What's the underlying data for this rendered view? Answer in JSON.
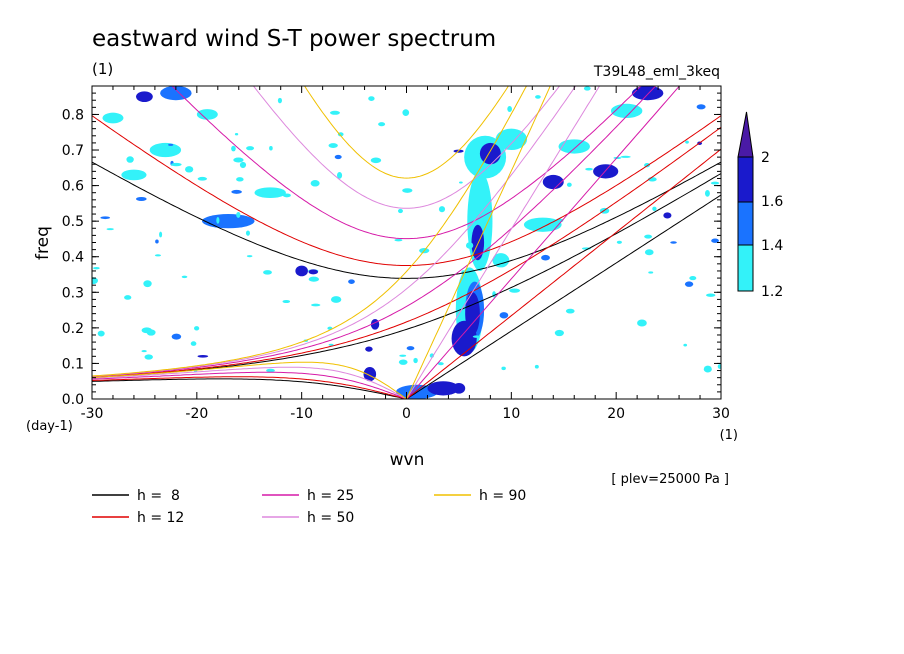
{
  "chart_data": {
    "type": "contour",
    "title": "eastward wind S-T power spectrum",
    "subtitle": "(1)",
    "run_label": "T39L48_eml_3keq",
    "xlabel": "wvn",
    "ylabel": "freq",
    "x_unit": "(1)",
    "y_unit": "(day-1)",
    "level_note": "[ plev=25000 Pa ]",
    "xlim": [
      -30,
      30
    ],
    "ylim": [
      0,
      0.88
    ],
    "x_ticks": [
      {
        "value": -30,
        "label": "-30"
      },
      {
        "value": -20,
        "label": "-20"
      },
      {
        "value": -10,
        "label": "-10"
      },
      {
        "value": 0,
        "label": "0"
      },
      {
        "value": 10,
        "label": "10"
      },
      {
        "value": 20,
        "label": "20"
      },
      {
        "value": 30,
        "label": "30"
      }
    ],
    "y_ticks": [
      {
        "value": 0.0,
        "label": "0.0"
      },
      {
        "value": 0.1,
        "label": "0.1"
      },
      {
        "value": 0.2,
        "label": "0.2"
      },
      {
        "value": 0.3,
        "label": "0.3"
      },
      {
        "value": 0.4,
        "label": "0.4"
      },
      {
        "value": 0.5,
        "label": "0.5"
      },
      {
        "value": 0.6,
        "label": "0.6"
      },
      {
        "value": 0.7,
        "label": "0.7"
      },
      {
        "value": 0.8,
        "label": "0.8"
      }
    ],
    "colorbar": {
      "levels": [
        {
          "value": 1.2,
          "label": "1.2",
          "color": "#33f2f9"
        },
        {
          "value": 1.4,
          "label": "1.4",
          "color": "#1a73ff"
        },
        {
          "value": 1.6,
          "label": "1.6",
          "color": "#1a1acc"
        },
        {
          "value": 2.0,
          "label": "2",
          "color": "#4a1aa6"
        }
      ],
      "extend": "max"
    },
    "dispersion_curves": [
      {
        "label": "h =  8",
        "h": 8,
        "color": "#000000"
      },
      {
        "label": "h = 12",
        "h": 12,
        "color": "#e00000"
      },
      {
        "label": "h = 25",
        "h": 25,
        "color": "#d61aa8"
      },
      {
        "label": "h = 50",
        "h": 50,
        "color": "#dd88dd"
      },
      {
        "label": "h = 90",
        "h": 90,
        "color": "#f0c000"
      }
    ],
    "spectral_blobs": [
      {
        "k": 6.0,
        "f": 0.25,
        "rk": 1.3,
        "rf": 0.12,
        "level": 1.2
      },
      {
        "k": 6.5,
        "f": 0.25,
        "rk": 0.9,
        "rf": 0.08,
        "level": 1.4
      },
      {
        "k": 6.3,
        "f": 0.24,
        "rk": 0.7,
        "rf": 0.06,
        "level": 1.6
      },
      {
        "k": 5.5,
        "f": 0.17,
        "rk": 1.2,
        "rf": 0.05,
        "level": 1.6
      },
      {
        "k": 7.0,
        "f": 0.5,
        "rk": 1.2,
        "rf": 0.14,
        "level": 1.2
      },
      {
        "k": 6.8,
        "f": 0.44,
        "rk": 0.6,
        "rf": 0.05,
        "level": 1.6
      },
      {
        "k": 7.5,
        "f": 0.68,
        "rk": 2.0,
        "rf": 0.06,
        "level": 1.2
      },
      {
        "k": 8.0,
        "f": 0.69,
        "rk": 1.0,
        "rf": 0.03,
        "level": 1.6
      },
      {
        "k": 10.0,
        "f": 0.73,
        "rk": 1.5,
        "rf": 0.03,
        "level": 1.2
      },
      {
        "k": 3.5,
        "f": 0.03,
        "rk": 1.5,
        "rf": 0.02,
        "level": 1.6
      },
      {
        "k": 1.0,
        "f": 0.02,
        "rk": 2.0,
        "rf": 0.02,
        "level": 1.4
      },
      {
        "k": 5.0,
        "f": 0.03,
        "rk": 0.6,
        "rf": 0.015,
        "level": 1.6
      },
      {
        "k": -3.5,
        "f": 0.07,
        "rk": 0.6,
        "rf": 0.02,
        "level": 1.6
      },
      {
        "k": -3.0,
        "f": 0.21,
        "rk": 0.4,
        "rf": 0.015,
        "level": 1.6
      },
      {
        "k": -10.0,
        "f": 0.36,
        "rk": 0.6,
        "rf": 0.015,
        "level": 1.6
      },
      {
        "k": -17.0,
        "f": 0.5,
        "rk": 2.5,
        "rf": 0.02,
        "level": 1.4
      },
      {
        "k": -22.0,
        "f": 0.86,
        "rk": 1.5,
        "rf": 0.02,
        "level": 1.4
      },
      {
        "k": -25.0,
        "f": 0.85,
        "rk": 0.8,
        "rf": 0.015,
        "level": 1.6
      },
      {
        "k": -19.0,
        "f": 0.8,
        "rk": 1.0,
        "rf": 0.015,
        "level": 1.2
      },
      {
        "k": -26.0,
        "f": 0.63,
        "rk": 1.2,
        "rf": 0.015,
        "level": 1.2
      },
      {
        "k": -13.0,
        "f": 0.58,
        "rk": 1.5,
        "rf": 0.015,
        "level": 1.2
      },
      {
        "k": 14.0,
        "f": 0.61,
        "rk": 1.0,
        "rf": 0.02,
        "level": 1.6
      },
      {
        "k": 16.0,
        "f": 0.71,
        "rk": 1.5,
        "rf": 0.02,
        "level": 1.2
      },
      {
        "k": 19.0,
        "f": 0.64,
        "rk": 1.2,
        "rf": 0.02,
        "level": 1.6
      },
      {
        "k": 21.0,
        "f": 0.81,
        "rk": 1.5,
        "rf": 0.02,
        "level": 1.2
      },
      {
        "k": 23.0,
        "f": 0.86,
        "rk": 1.5,
        "rf": 0.02,
        "level": 1.6
      },
      {
        "k": 13.0,
        "f": 0.49,
        "rk": 1.8,
        "rf": 0.02,
        "level": 1.2
      },
      {
        "k": 9.0,
        "f": 0.39,
        "rk": 0.8,
        "rf": 0.02,
        "level": 1.2
      },
      {
        "k": -23.0,
        "f": 0.7,
        "rk": 1.5,
        "rf": 0.02,
        "level": 1.2
      },
      {
        "k": -28.0,
        "f": 0.79,
        "rk": 1.0,
        "rf": 0.015,
        "level": 1.2
      }
    ],
    "speckle_seed": 7
  }
}
